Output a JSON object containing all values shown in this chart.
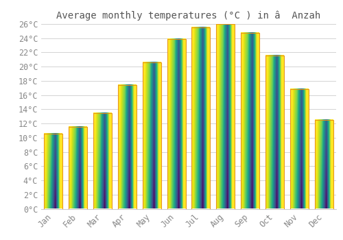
{
  "title": "Average monthly temperatures (°C ) in â  Anzah",
  "months": [
    "Jan",
    "Feb",
    "Mar",
    "Apr",
    "May",
    "Jun",
    "Jul",
    "Aug",
    "Sep",
    "Oct",
    "Nov",
    "Dec"
  ],
  "values": [
    10.6,
    11.5,
    13.5,
    17.4,
    20.6,
    23.9,
    25.5,
    26.0,
    24.7,
    21.6,
    16.8,
    12.5
  ],
  "bar_color_bottom": "#F5A623",
  "bar_color_top": "#FFD580",
  "bar_edge_color": "#E8961A",
  "background_color": "#ffffff",
  "grid_color": "#cccccc",
  "text_color": "#888888",
  "title_color": "#555555",
  "ylim_max": 26,
  "ytick_step": 2,
  "title_fontsize": 10,
  "tick_fontsize": 8.5,
  "bar_width": 0.75
}
